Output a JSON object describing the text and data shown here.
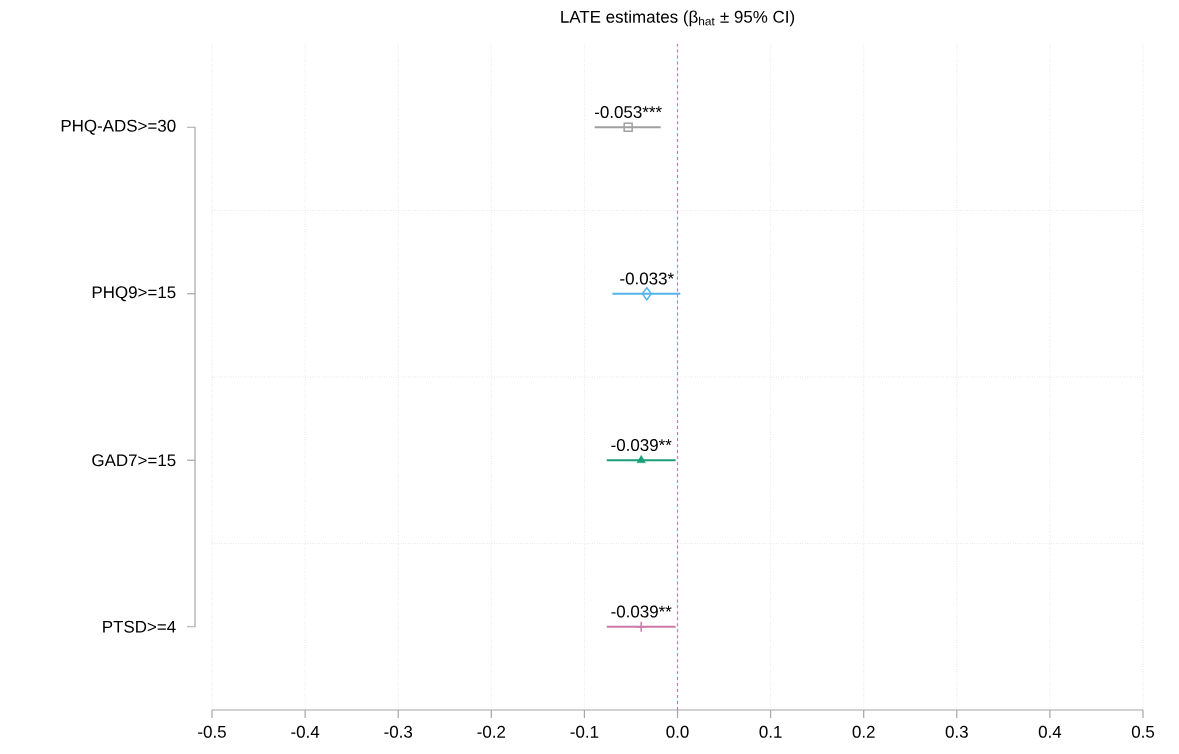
{
  "chart_data": {
    "type": "scatter",
    "title": "LATE estimates (β$_{hat}$ ± 95% CI)",
    "orientation": "horizontal",
    "categories": [
      "PHQ-ADS>=30",
      "PHQ9>=15",
      "GAD7>=15",
      "PTSD>=4"
    ],
    "series": [
      {
        "color": "#a0a0a0",
        "marker": "square",
        "values": [
          -0.053,
          null,
          null,
          null
        ],
        "errors": [
          [
            -0.089,
            -0.018
          ],
          null,
          null,
          null
        ],
        "value_labels": [
          "-0.053***",
          null,
          null,
          null
        ]
      },
      {
        "color": "#56b4e9",
        "marker": "diamond",
        "values": [
          null,
          -0.033,
          null,
          null
        ],
        "errors": [
          null,
          [
            -0.07,
            0.003
          ],
          null,
          null
        ],
        "value_labels": [
          null,
          "-0.033*",
          null,
          null
        ]
      },
      {
        "color": "#1a9e77",
        "marker": "triangle",
        "values": [
          null,
          null,
          -0.039,
          null
        ],
        "errors": [
          null,
          null,
          [
            -0.076,
            -0.002
          ],
          null
        ],
        "value_labels": [
          null,
          null,
          "-0.039**",
          null
        ]
      },
      {
        "color": "#cc79a7",
        "marker": "cross",
        "values": [
          null,
          null,
          null,
          -0.039
        ],
        "errors": [
          null,
          null,
          null,
          [
            -0.076,
            -0.002
          ]
        ],
        "value_labels": [
          null,
          null,
          null,
          "-0.039**"
        ]
      }
    ],
    "xlim": [
      -0.5,
      0.5
    ],
    "xticks": [
      -0.5,
      -0.4,
      -0.3,
      -0.2,
      -0.1,
      {
        "value": 0,
        "label": "0.0"
      },
      0.1,
      0.2,
      0.3,
      0.4,
      0.5
    ],
    "grid": true,
    "ref_lines": [
      {
        "axis": "x",
        "value": 0,
        "color": "#cc79a7",
        "line_style": "dashed"
      }
    ]
  }
}
